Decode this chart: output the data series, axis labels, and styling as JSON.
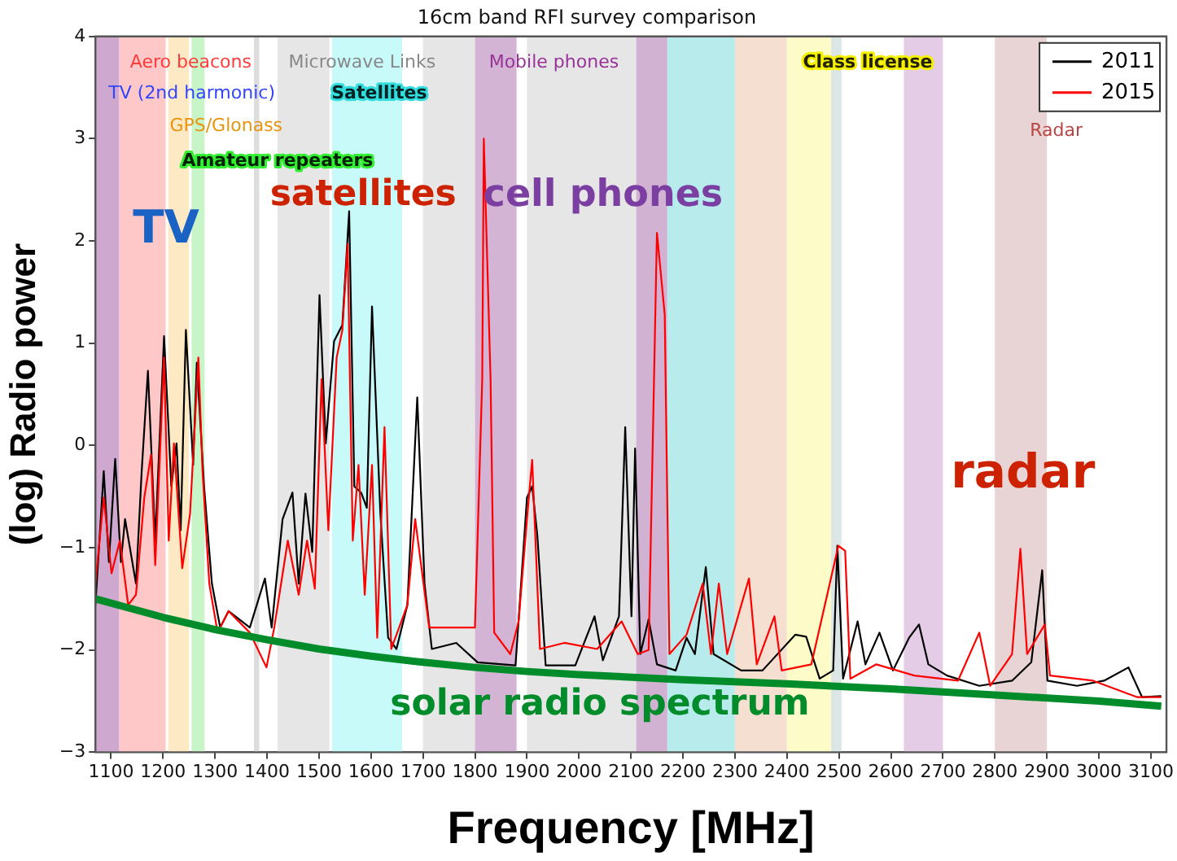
{
  "chart_data": {
    "type": "line",
    "title": "16cm band RFI survey comparison",
    "xlabel": "Frequency [MHz]",
    "ylabel": "(log) Radio power",
    "xlim": [
      1070,
      3130
    ],
    "xticks": [
      1100,
      1200,
      1300,
      1400,
      1500,
      1600,
      1700,
      1800,
      1900,
      2000,
      2100,
      2200,
      2300,
      2400,
      2500,
      2600,
      2700,
      2800,
      2900,
      3000,
      3100
    ],
    "ylim": [
      -3,
      4
    ],
    "yticks": [
      {
        "value": -3,
        "label": "−3"
      },
      {
        "value": -2,
        "label": "−2"
      },
      {
        "value": -1,
        "label": "−1"
      },
      0,
      1,
      2,
      3,
      4
    ],
    "grid": false,
    "legend": "top right",
    "marker": "none",
    "line_style": "solid",
    "series": [
      {
        "name": "2011",
        "color": "#000000",
        "x": [
          1070,
          1086,
          1096,
          1108,
          1119,
          1127,
          1148,
          1159,
          1171,
          1185,
          1202,
          1216,
          1226,
          1234,
          1244,
          1258,
          1265,
          1279,
          1294,
          1310,
          1326,
          1367,
          1396,
          1409,
          1430,
          1449,
          1461,
          1474,
          1487,
          1501,
          1513,
          1529,
          1545,
          1558,
          1568,
          1581,
          1592,
          1602,
          1618,
          1633,
          1649,
          1670,
          1689,
          1703,
          1717,
          1764,
          1805,
          1878,
          1900,
          1910,
          1920,
          1936,
          1993,
          2030,
          2046,
          2077,
          2089,
          2101,
          2108,
          2118,
          2134,
          2150,
          2186,
          2207,
          2223,
          2244,
          2259,
          2312,
          2353,
          2416,
          2437,
          2463,
          2489,
          2497,
          2508,
          2536,
          2551,
          2578,
          2604,
          2635,
          2654,
          2672,
          2708,
          2770,
          2833,
          2870,
          2891,
          2901,
          2958,
          3010,
          3057,
          3083,
          3120
        ],
        "values": [
          -1.56,
          -0.25,
          -1.14,
          -0.13,
          -1.14,
          -0.72,
          -1.35,
          -0.25,
          0.73,
          -0.93,
          1.07,
          -0.4,
          0.02,
          -0.83,
          1.13,
          -0.19,
          0.81,
          -0.4,
          -1.35,
          -1.78,
          -1.62,
          -1.78,
          -1.3,
          -1.78,
          -0.72,
          -0.46,
          -1.35,
          -0.47,
          -1.04,
          1.47,
          0.02,
          1.02,
          1.18,
          2.29,
          -0.4,
          -0.46,
          -0.61,
          1.36,
          -0.66,
          -1.88,
          -1.99,
          -1.56,
          0.47,
          -1.35,
          -1.99,
          -1.93,
          -2.12,
          -2.15,
          -0.51,
          -0.4,
          -0.88,
          -2.15,
          -2.15,
          -1.67,
          -2.1,
          -1.67,
          0.18,
          -1.67,
          -0.03,
          -2.04,
          -1.7,
          -2.14,
          -2.2,
          -1.88,
          -2.04,
          -1.19,
          -2.04,
          -2.2,
          -2.2,
          -1.85,
          -1.87,
          -2.28,
          -2.2,
          -0.98,
          -2.28,
          -1.72,
          -2.14,
          -1.83,
          -2.2,
          -1.88,
          -1.75,
          -2.14,
          -2.25,
          -2.35,
          -2.3,
          -2.12,
          -1.22,
          -2.3,
          -2.35,
          -2.3,
          -2.17,
          -2.46,
          -2.45
        ]
      },
      {
        "name": "2015",
        "color": "#ff0000",
        "x": [
          1070,
          1086,
          1101,
          1117,
          1133,
          1148,
          1164,
          1177,
          1185,
          1202,
          1211,
          1221,
          1237,
          1252,
          1268,
          1276,
          1289,
          1305,
          1326,
          1367,
          1399,
          1414,
          1440,
          1461,
          1477,
          1492,
          1505,
          1518,
          1534,
          1545,
          1555,
          1565,
          1576,
          1588,
          1602,
          1612,
          1626,
          1639,
          1670,
          1685,
          1701,
          1712,
          1764,
          1800,
          1814,
          1817,
          1830,
          1837,
          1868,
          1884,
          1900,
          1910,
          1925,
          1972,
          2035,
          2082,
          2113,
          2134,
          2150,
          2165,
          2174,
          2207,
          2238,
          2254,
          2269,
          2285,
          2327,
          2342,
          2376,
          2390,
          2447,
          2499,
          2512,
          2522,
          2572,
          2645,
          2729,
          2770,
          2791,
          2833,
          2849,
          2862,
          2896,
          2906,
          2989,
          3073,
          3120
        ],
        "values": [
          -1.35,
          -0.51,
          -1.25,
          -0.93,
          -1.56,
          -1.46,
          -0.51,
          -0.09,
          -1.17,
          0.86,
          -0.93,
          0.02,
          -1.2,
          -0.67,
          0.86,
          -0.25,
          -1.35,
          -1.83,
          -1.62,
          -1.83,
          -2.17,
          -1.78,
          -0.93,
          -1.46,
          -0.93,
          -1.4,
          0.65,
          -0.83,
          0.86,
          1.13,
          1.97,
          -0.93,
          -0.19,
          -1.46,
          -0.19,
          -1.88,
          0.18,
          -1.99,
          -1.56,
          -0.72,
          -1.35,
          -1.78,
          -1.78,
          -1.78,
          0.65,
          3.0,
          0.65,
          -1.83,
          -2.04,
          -1.72,
          -0.72,
          -0.14,
          -1.99,
          -1.93,
          -1.99,
          -1.72,
          -2.04,
          -2.0,
          2.08,
          1.28,
          -2.04,
          -1.85,
          -1.35,
          -2.04,
          -1.35,
          -2.04,
          -1.3,
          -2.14,
          -1.67,
          -2.2,
          -2.14,
          -0.98,
          -1.03,
          -2.28,
          -2.14,
          -2.25,
          -2.3,
          -1.83,
          -2.35,
          -2.04,
          -1.01,
          -2.04,
          -1.75,
          -2.25,
          -2.3,
          -2.46,
          -2.46
        ]
      },
      {
        "type": "line",
        "color": "#008c2a",
        "x": [
          1070,
          1200,
          1300,
          1400,
          1500,
          1600,
          1700,
          1800,
          1900,
          2000,
          2200,
          2400,
          2600,
          2800,
          3000,
          3120
        ],
        "values": [
          -1.5,
          -1.68,
          -1.8,
          -1.9,
          -1.99,
          -2.06,
          -2.12,
          -2.17,
          -2.21,
          -2.24,
          -2.29,
          -2.33,
          -2.38,
          -2.44,
          -2.5,
          -2.55
        ]
      }
    ],
    "bands": [
      {
        "axis": "x",
        "from": 1070,
        "to": 1116,
        "color": "#cfa8cf"
      },
      {
        "axis": "x",
        "from": 1116,
        "to": 1205,
        "color": "#ffc8c8"
      },
      {
        "axis": "x",
        "from": 1210,
        "to": 1250,
        "color": "#fde9c4"
      },
      {
        "axis": "x",
        "from": 1255,
        "to": 1280,
        "color": "#c8f5c8"
      },
      {
        "axis": "x",
        "from": 1375,
        "to": 1385,
        "color": "#dddddd"
      },
      {
        "axis": "x",
        "from": 1420,
        "to": 1520,
        "color": "#e6e6e6"
      },
      {
        "axis": "x",
        "from": 1525,
        "to": 1660,
        "color": "#c8fafa"
      },
      {
        "axis": "x",
        "from": 1700,
        "to": 1800,
        "color": "#e6e6e6"
      },
      {
        "axis": "x",
        "from": 1800,
        "to": 1880,
        "color": "#d4b4d4"
      },
      {
        "axis": "x",
        "from": 1900,
        "to": 2110,
        "color": "#e6e6e6"
      },
      {
        "axis": "x",
        "from": 2110,
        "to": 2170,
        "color": "#d2b2d2"
      },
      {
        "axis": "x",
        "from": 2170,
        "to": 2300,
        "color": "#b8ecec"
      },
      {
        "axis": "x",
        "from": 2300,
        "to": 2400,
        "color": "#f5dfd0"
      },
      {
        "axis": "x",
        "from": 2400,
        "to": 2485,
        "color": "#fdfcc8"
      },
      {
        "axis": "x",
        "from": 2485,
        "to": 2505,
        "color": "#dde6e6"
      },
      {
        "axis": "x",
        "from": 2625,
        "to": 2700,
        "color": "#e4cce6"
      },
      {
        "axis": "x",
        "from": 2800,
        "to": 2900,
        "color": "#e8d4d4"
      }
    ],
    "annotations": [
      "Aero beacons",
      "TV (2nd harmonic)",
      "GPS/Glonass",
      "Amateur repeaters",
      "Microwave Links",
      "Satellites",
      "Mobile phones",
      "Class license",
      "Radar",
      "TV",
      "satellites",
      "cell phones",
      "radar",
      "solar radio spectrum"
    ]
  }
}
